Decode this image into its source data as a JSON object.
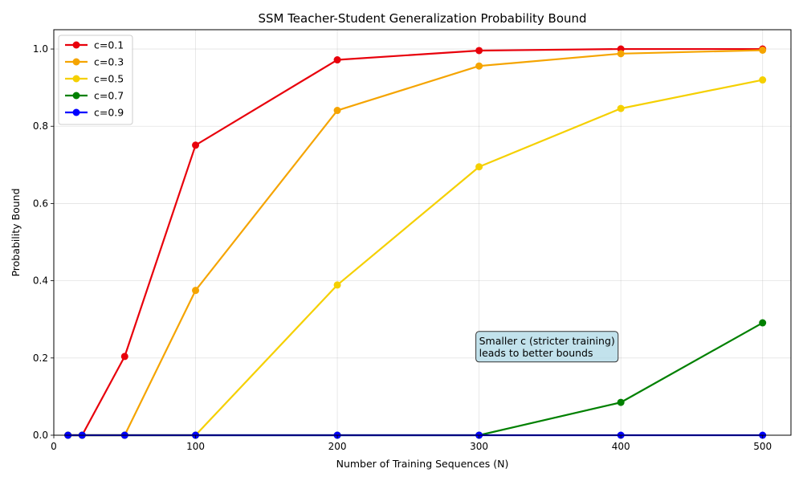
{
  "chart_data": {
    "type": "line",
    "title": "SSM Teacher-Student Generalization Probability Bound",
    "xlabel": "Number of Training Sequences (N)",
    "ylabel": "Probability Bound",
    "xlim": [
      0,
      520
    ],
    "ylim": [
      0,
      1.05
    ],
    "xticks": [
      0,
      100,
      200,
      300,
      400,
      500
    ],
    "yticks": [
      0.0,
      0.2,
      0.4,
      0.6,
      0.8,
      1.0
    ],
    "xtick_labels": [
      "0",
      "100",
      "200",
      "300",
      "400",
      "500"
    ],
    "ytick_labels": [
      "0.0",
      "0.2",
      "0.4",
      "0.6",
      "0.8",
      "1.0"
    ],
    "grid": true,
    "legend_position": "upper-left",
    "x": [
      10,
      20,
      50,
      100,
      200,
      300,
      400,
      500
    ],
    "series": [
      {
        "name": "c=0.1",
        "color": "#e8000b",
        "values": [
          0,
          0,
          0.204,
          0.751,
          0.972,
          0.996,
          1.0,
          1.0
        ]
      },
      {
        "name": "c=0.3",
        "color": "#f5a400",
        "values": [
          0,
          0,
          0,
          0.375,
          0.841,
          0.956,
          0.988,
          0.997
        ]
      },
      {
        "name": "c=0.5",
        "color": "#f5d000",
        "values": [
          0,
          0,
          0,
          0,
          0.389,
          0.695,
          0.846,
          0.92
        ]
      },
      {
        "name": "c=0.7",
        "color": "#008000",
        "values": [
          0,
          0,
          0,
          0,
          0,
          0,
          0.085,
          0.291
        ]
      },
      {
        "name": "c=0.9",
        "color": "#0000ff",
        "values": [
          0,
          0,
          0,
          0,
          0,
          0,
          0,
          0
        ]
      }
    ],
    "annotation": {
      "lines": [
        "Smaller c (stricter training)",
        "leads to better bounds"
      ],
      "x": 300,
      "y": 0.2,
      "box_color": "#add8e6"
    }
  }
}
